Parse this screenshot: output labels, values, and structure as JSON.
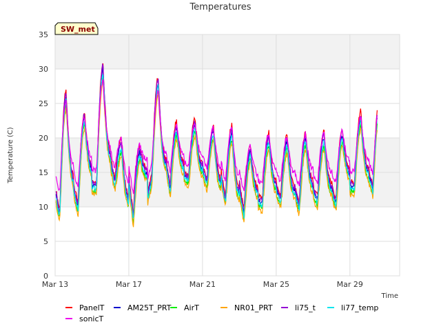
{
  "chart_data": {
    "type": "line",
    "title": "Temperatures",
    "xlabel": "Time",
    "ylabel": "Temperature (C)",
    "site_tag": "SW_met",
    "ylim": [
      0,
      35
    ],
    "xlim": [
      0,
      18.7
    ],
    "y_ticks": [
      0,
      5,
      10,
      15,
      20,
      25,
      30,
      35
    ],
    "x_ticks": [
      {
        "day": 0,
        "label": "Mar 13"
      },
      {
        "day": 4,
        "label": "Mar 17"
      },
      {
        "day": 8,
        "label": "Mar 21"
      },
      {
        "day": 12,
        "label": "Mar 25"
      },
      {
        "day": 16,
        "label": "Mar 29"
      }
    ],
    "band_shading": [
      [
        10,
        20
      ],
      [
        30,
        35
      ]
    ],
    "grid": true,
    "legend_position": "bottom",
    "day_min": [
      9,
      10,
      13,
      13.5,
      8.5,
      14,
      12.5,
      14,
      13.5,
      11,
      9,
      10.5,
      11,
      10,
      11,
      10.5,
      13,
      12.5
    ],
    "day_max": [
      26,
      23,
      30,
      19,
      18,
      28,
      21.5,
      22,
      21,
      21,
      18,
      20,
      19.5,
      20,
      20,
      20.5,
      23,
      25
    ],
    "series": [
      {
        "name": "PanelT",
        "color": "#ff0000",
        "offset": 0.6,
        "sonic": false
      },
      {
        "name": "AM25T_PRT",
        "color": "#0000cc",
        "offset": 0.0,
        "sonic": false
      },
      {
        "name": "AirT",
        "color": "#00ee00",
        "offset": -0.8,
        "sonic": false
      },
      {
        "name": "NR01_PRT",
        "color": "#ffa500",
        "offset": -1.2,
        "sonic": false
      },
      {
        "name": "li75_t",
        "color": "#9400d3",
        "offset": 0.3,
        "sonic": false
      },
      {
        "name": "li77_temp",
        "color": "#00e5ee",
        "offset": -0.4,
        "sonic": false
      },
      {
        "name": "sonicT",
        "color": "#ee00ee",
        "offset": 0.0,
        "sonic": true
      }
    ]
  }
}
